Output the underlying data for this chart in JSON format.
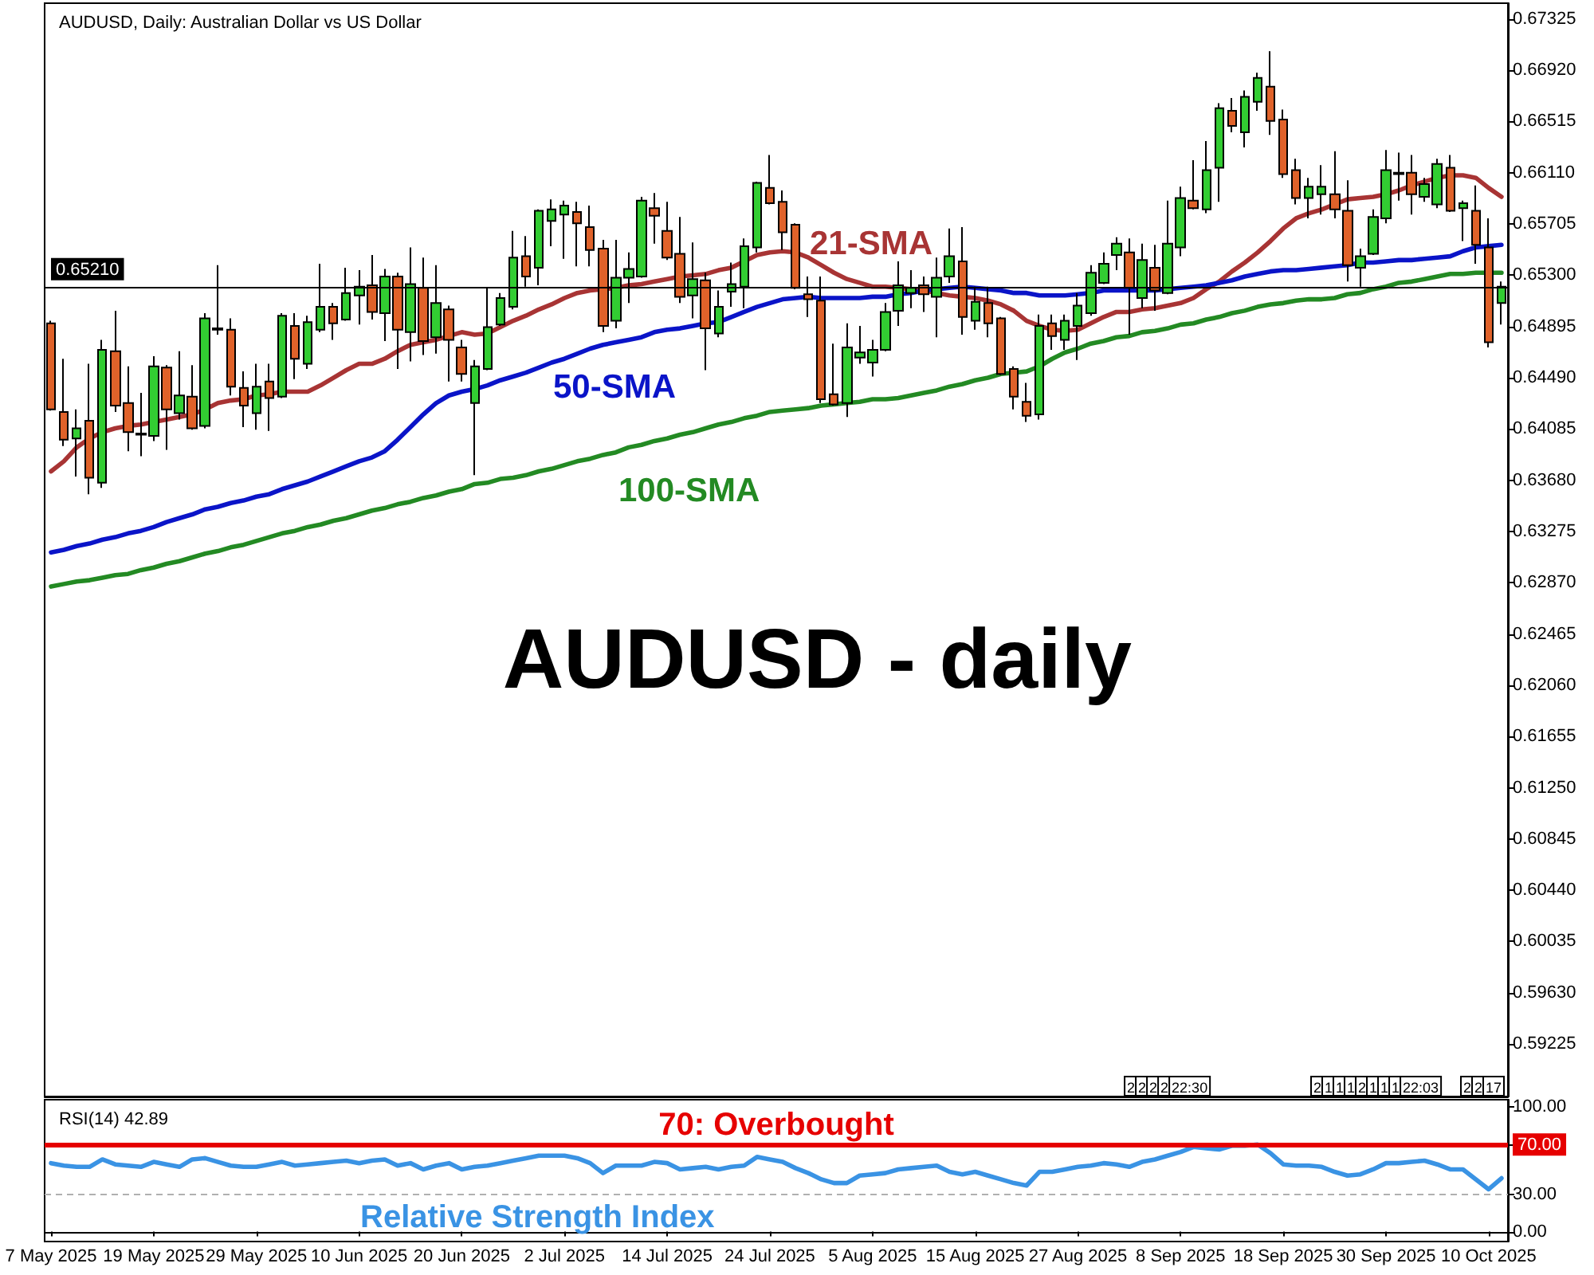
{
  "chart_data": [
    {
      "type": "candlestick",
      "title": "AUDUSD, Daily: Australian Dollar vs US Dollar",
      "categories": [
        null,
        null,
        null,
        null,
        null,
        null,
        null,
        null,
        null,
        null,
        null,
        null,
        null,
        null,
        null,
        null,
        null,
        null,
        null,
        null,
        null,
        null,
        null,
        null,
        null,
        null,
        null,
        null,
        null,
        null,
        null,
        null,
        null,
        null,
        null,
        null,
        null,
        null,
        null,
        null,
        null,
        null,
        null,
        null,
        null,
        null,
        null,
        null,
        null,
        null,
        null,
        null,
        null,
        null,
        null,
        null,
        null,
        null,
        null,
        null,
        null,
        null,
        null,
        null,
        null,
        null,
        null,
        null,
        null,
        null,
        null,
        null,
        null,
        null,
        null,
        null,
        null,
        null,
        null,
        null,
        null,
        null,
        null,
        null,
        null,
        null,
        null,
        null,
        null,
        null,
        null,
        null,
        null,
        null,
        null,
        null,
        null,
        null,
        null,
        null,
        null,
        null,
        null,
        null,
        null,
        null,
        null,
        null,
        null,
        null,
        null,
        null,
        null,
        null
      ],
      "ohlc": [
        [
          0.6492,
          0.6494,
          0.6423,
          0.6424
        ],
        [
          0.6422,
          0.6464,
          0.6395,
          0.64
        ],
        [
          0.6401,
          0.6424,
          0.6371,
          0.6409
        ],
        [
          0.6415,
          0.646,
          0.6357,
          0.637
        ],
        [
          0.6366,
          0.6479,
          0.6362,
          0.6471
        ],
        [
          0.647,
          0.6502,
          0.6422,
          0.6427
        ],
        [
          0.6429,
          0.6458,
          0.6391,
          0.6406
        ],
        [
          0.6405,
          0.6437,
          0.6387,
          0.6404
        ],
        [
          0.6403,
          0.6466,
          0.6399,
          0.6458
        ],
        [
          0.6457,
          0.6459,
          0.6392,
          0.6424
        ],
        [
          0.6421,
          0.647,
          0.6416,
          0.6435
        ],
        [
          0.6434,
          0.6459,
          0.6408,
          0.6409
        ],
        [
          0.6411,
          0.65,
          0.6409,
          0.6496
        ],
        [
          0.6488,
          0.6538,
          0.6483,
          0.6487
        ],
        [
          0.6487,
          0.6496,
          0.6435,
          0.6442
        ],
        [
          0.6441,
          0.6454,
          0.641,
          0.6427
        ],
        [
          0.6421,
          0.646,
          0.6408,
          0.6442
        ],
        [
          0.6446,
          0.646,
          0.6407,
          0.6433
        ],
        [
          0.6434,
          0.65,
          0.6433,
          0.6498
        ],
        [
          0.649,
          0.65,
          0.6448,
          0.6464
        ],
        [
          0.646,
          0.6498,
          0.6456,
          0.6493
        ],
        [
          0.6487,
          0.6539,
          0.6485,
          0.6505
        ],
        [
          0.6505,
          0.6508,
          0.6479,
          0.6492
        ],
        [
          0.6495,
          0.6536,
          0.6494,
          0.6516
        ],
        [
          0.6514,
          0.6534,
          0.6491,
          0.6521
        ],
        [
          0.6522,
          0.6546,
          0.6495,
          0.6501
        ],
        [
          0.65,
          0.6535,
          0.6478,
          0.6529
        ],
        [
          0.6529,
          0.6532,
          0.6456,
          0.6487
        ],
        [
          0.6485,
          0.6552,
          0.6462,
          0.6523
        ],
        [
          0.652,
          0.6544,
          0.6467,
          0.6478
        ],
        [
          0.6481,
          0.6538,
          0.6468,
          0.6508
        ],
        [
          0.6503,
          0.6506,
          0.6446,
          0.6479
        ],
        [
          0.6473,
          0.6479,
          0.6446,
          0.6452
        ],
        [
          0.6429,
          0.6463,
          0.6372,
          0.6458
        ],
        [
          0.6456,
          0.652,
          0.6455,
          0.6489
        ],
        [
          0.6491,
          0.6516,
          0.649,
          0.6512
        ],
        [
          0.6505,
          0.6565,
          0.6503,
          0.6544
        ],
        [
          0.6545,
          0.6561,
          0.6521,
          0.6529
        ],
        [
          0.6536,
          0.6582,
          0.6522,
          0.6581
        ],
        [
          0.6573,
          0.659,
          0.6553,
          0.6582
        ],
        [
          0.6578,
          0.6589,
          0.6543,
          0.6585
        ],
        [
          0.658,
          0.6588,
          0.6537,
          0.6571
        ],
        [
          0.6568,
          0.6585,
          0.6537,
          0.655
        ],
        [
          0.6551,
          0.6558,
          0.6485,
          0.649
        ],
        [
          0.6494,
          0.6558,
          0.6488,
          0.6528
        ],
        [
          0.6528,
          0.6548,
          0.6508,
          0.6535
        ],
        [
          0.6529,
          0.6592,
          0.6528,
          0.6589
        ],
        [
          0.6583,
          0.6595,
          0.6555,
          0.6577
        ],
        [
          0.6565,
          0.6588,
          0.6542,
          0.6544
        ],
        [
          0.6547,
          0.6576,
          0.6508,
          0.6513
        ],
        [
          0.6514,
          0.6556,
          0.6496,
          0.6527
        ],
        [
          0.6526,
          0.6532,
          0.6455,
          0.6488
        ],
        [
          0.6484,
          0.6518,
          0.6481,
          0.6505
        ],
        [
          0.6517,
          0.654,
          0.6505,
          0.6523
        ],
        [
          0.6521,
          0.6559,
          0.6504,
          0.6553
        ],
        [
          0.6552,
          0.6604,
          0.6548,
          0.6603
        ],
        [
          0.6599,
          0.6625,
          0.6586,
          0.6587
        ],
        [
          0.6588,
          0.6597,
          0.655,
          0.6564
        ],
        [
          0.657,
          0.6571,
          0.6519,
          0.652
        ],
        [
          0.6515,
          0.6529,
          0.6497,
          0.6511
        ],
        [
          0.651,
          0.6529,
          0.6429,
          0.6432
        ],
        [
          0.6436,
          0.6476,
          0.6427,
          0.6428
        ],
        [
          0.6429,
          0.6492,
          0.6418,
          0.6473
        ],
        [
          0.6465,
          0.649,
          0.646,
          0.6469
        ],
        [
          0.6461,
          0.6479,
          0.645,
          0.6471
        ],
        [
          0.6471,
          0.6508,
          0.647,
          0.6501
        ],
        [
          0.6502,
          0.6541,
          0.649,
          0.6522
        ],
        [
          0.6516,
          0.6534,
          0.6504,
          0.652
        ],
        [
          0.6522,
          0.6529,
          0.6501,
          0.6515
        ],
        [
          0.6513,
          0.6544,
          0.6481,
          0.6528
        ],
        [
          0.6529,
          0.6567,
          0.6524,
          0.6545
        ],
        [
          0.6541,
          0.6568,
          0.6483,
          0.6497
        ],
        [
          0.6494,
          0.6521,
          0.6487,
          0.6509
        ],
        [
          0.6508,
          0.6521,
          0.6481,
          0.6492
        ],
        [
          0.6496,
          0.6497,
          0.6451,
          0.6452
        ],
        [
          0.6456,
          0.6458,
          0.6424,
          0.6434
        ],
        [
          0.643,
          0.6445,
          0.6414,
          0.6419
        ],
        [
          0.642,
          0.6499,
          0.6416,
          0.649
        ],
        [
          0.6492,
          0.6499,
          0.6471,
          0.6482
        ],
        [
          0.6479,
          0.6499,
          0.6471,
          0.6494
        ],
        [
          0.649,
          0.6516,
          0.6463,
          0.6506
        ],
        [
          0.65,
          0.6538,
          0.6498,
          0.6532
        ],
        [
          0.6524,
          0.6548,
          0.6523,
          0.6539
        ],
        [
          0.6546,
          0.656,
          0.6534,
          0.6555
        ],
        [
          0.6548,
          0.6559,
          0.6483,
          0.652
        ],
        [
          0.6512,
          0.6555,
          0.6504,
          0.6542
        ],
        [
          0.6536,
          0.6554,
          0.6502,
          0.6518
        ],
        [
          0.6516,
          0.6589,
          0.6515,
          0.6555
        ],
        [
          0.6552,
          0.66,
          0.6545,
          0.6591
        ],
        [
          0.6589,
          0.6621,
          0.6582,
          0.6583
        ],
        [
          0.6582,
          0.6636,
          0.6579,
          0.6613
        ],
        [
          0.6615,
          0.6666,
          0.6588,
          0.6662
        ],
        [
          0.666,
          0.667,
          0.6643,
          0.6648
        ],
        [
          0.6643,
          0.6676,
          0.6631,
          0.6671
        ],
        [
          0.6667,
          0.669,
          0.666,
          0.6686
        ],
        [
          0.6679,
          0.6707,
          0.6641,
          0.6652
        ],
        [
          0.6653,
          0.6661,
          0.6607,
          0.661
        ],
        [
          0.6613,
          0.6622,
          0.6586,
          0.6591
        ],
        [
          0.6591,
          0.6607,
          0.6575,
          0.66
        ],
        [
          0.6594,
          0.6617,
          0.6578,
          0.66
        ],
        [
          0.6594,
          0.6628,
          0.6575,
          0.6582
        ],
        [
          0.6581,
          0.6605,
          0.6525,
          0.6538
        ],
        [
          0.6536,
          0.6551,
          0.6521,
          0.6545
        ],
        [
          0.6547,
          0.6582,
          0.6546,
          0.6576
        ],
        [
          0.6575,
          0.6629,
          0.6571,
          0.6613
        ],
        [
          0.6611,
          0.6627,
          0.6589,
          0.661
        ],
        [
          0.6611,
          0.6625,
          0.6578,
          0.6594
        ],
        [
          0.6592,
          0.6607,
          0.6588,
          0.6602
        ],
        [
          0.6586,
          0.6622,
          0.6583,
          0.6618
        ],
        [
          0.6615,
          0.6625,
          0.658,
          0.6581
        ],
        [
          0.6583,
          0.6589,
          0.6557,
          0.6587
        ],
        [
          0.6581,
          0.6601,
          0.6539,
          0.6554
        ],
        [
          0.6552,
          0.6575,
          0.6473,
          0.6477
        ],
        [
          0.6508,
          0.6525,
          0.6491,
          0.6521
        ]
      ],
      "colors": [
        "#e0622a",
        "#e0622a",
        "#32cd32",
        "#e0622a",
        "#32cd32",
        "#e0622a",
        "#e0622a",
        "#e0622a",
        "#32cd32",
        "#e0622a",
        "#32cd32",
        "#e0622a",
        "#32cd32",
        "#e0622a",
        "#e0622a",
        "#e0622a",
        "#32cd32",
        "#e0622a",
        "#32cd32",
        "#e0622a",
        "#32cd32",
        "#32cd32",
        "#e0622a",
        "#32cd32",
        "#32cd32",
        "#e0622a",
        "#32cd32",
        "#e0622a",
        "#32cd32",
        "#e0622a",
        "#32cd32",
        "#e0622a",
        "#e0622a",
        "#32cd32",
        "#32cd32",
        "#32cd32",
        "#32cd32",
        "#e0622a",
        "#32cd32",
        "#32cd32",
        "#32cd32",
        "#e0622a",
        "#e0622a",
        "#e0622a",
        "#32cd32",
        "#32cd32",
        "#32cd32",
        "#e0622a",
        "#e0622a",
        "#e0622a",
        "#32cd32",
        "#e0622a",
        "#32cd32",
        "#32cd32",
        "#32cd32",
        "#32cd32",
        "#e0622a",
        "#e0622a",
        "#e0622a",
        "#e0622a",
        "#e0622a",
        "#e0622a",
        "#32cd32",
        "#32cd32",
        "#32cd32",
        "#32cd32",
        "#32cd32",
        "#32cd32",
        "#e0622a",
        "#32cd32",
        "#32cd32",
        "#e0622a",
        "#32cd32",
        "#e0622a",
        "#e0622a",
        "#e0622a",
        "#e0622a",
        "#32cd32",
        "#e0622a",
        "#32cd32",
        "#32cd32",
        "#32cd32",
        "#32cd32",
        "#32cd32",
        "#e0622a",
        "#32cd32",
        "#e0622a",
        "#32cd32",
        "#32cd32",
        "#e0622a",
        "#32cd32",
        "#32cd32",
        "#e0622a",
        "#32cd32",
        "#32cd32",
        "#e0622a",
        "#e0622a",
        "#e0622a",
        "#32cd32",
        "#32cd32",
        "#e0622a",
        "#e0622a",
        "#32cd32",
        "#32cd32",
        "#32cd32",
        "#e0622a",
        "#e0622a",
        "#32cd32",
        "#32cd32",
        "#e0622a",
        "#32cd32",
        "#e0622a",
        "#e0622a",
        "#32cd32"
      ],
      "series": [
        {
          "type": "line",
          "name": "21-SMA",
          "color": "#a83434",
          "values": [
            0.6375,
            0.6383,
            0.6394,
            0.6401,
            0.6406,
            0.6409,
            0.6411,
            0.6412,
            0.6414,
            0.6416,
            0.6418,
            0.642,
            0.6424,
            0.6429,
            0.6431,
            0.6432,
            0.6435,
            0.6436,
            0.6438,
            0.6438,
            0.6438,
            0.6443,
            0.6449,
            0.6455,
            0.646,
            0.646,
            0.6464,
            0.647,
            0.6475,
            0.6477,
            0.6479,
            0.6482,
            0.6485,
            0.6483,
            0.6484,
            0.6489,
            0.6494,
            0.6498,
            0.6503,
            0.6507,
            0.6512,
            0.6516,
            0.6518,
            0.6519,
            0.652,
            0.6522,
            0.6523,
            0.6525,
            0.6527,
            0.6529,
            0.653,
            0.6531,
            0.6534,
            0.6536,
            0.6541,
            0.6546,
            0.6548,
            0.6549,
            0.6548,
            0.6544,
            0.6538,
            0.6532,
            0.6527,
            0.6524,
            0.6521,
            0.6521,
            0.652,
            0.6519,
            0.6518,
            0.6516,
            0.6514,
            0.6513,
            0.6512,
            0.651,
            0.6507,
            0.6502,
            0.6494,
            0.649,
            0.6487,
            0.6486,
            0.6487,
            0.6492,
            0.6497,
            0.6501,
            0.6501,
            0.6503,
            0.6504,
            0.6506,
            0.6508,
            0.6512,
            0.6519,
            0.6525,
            0.6533,
            0.654,
            0.6548,
            0.6557,
            0.6567,
            0.6575,
            0.6579,
            0.6582,
            0.6586,
            0.659,
            0.6591,
            0.6592,
            0.6594,
            0.6597,
            0.6601,
            0.6604,
            0.6607,
            0.6609,
            0.6609,
            0.6607,
            0.6599,
            0.6592
          ]
        },
        {
          "type": "line",
          "name": "50-SMA",
          "color": "#0a14c8",
          "values": [
            0.6311,
            0.6313,
            0.6316,
            0.6318,
            0.6321,
            0.6323,
            0.6326,
            0.6328,
            0.6331,
            0.6335,
            0.6338,
            0.6341,
            0.6345,
            0.6347,
            0.635,
            0.6352,
            0.6355,
            0.6357,
            0.6361,
            0.6364,
            0.6367,
            0.6371,
            0.6375,
            0.6379,
            0.6383,
            0.6386,
            0.6391,
            0.64,
            0.641,
            0.642,
            0.6429,
            0.6435,
            0.6438,
            0.644,
            0.6443,
            0.6447,
            0.645,
            0.6453,
            0.6457,
            0.6461,
            0.6464,
            0.6468,
            0.6472,
            0.6475,
            0.6477,
            0.6479,
            0.6481,
            0.6485,
            0.6487,
            0.6488,
            0.649,
            0.6492,
            0.6493,
            0.6497,
            0.6501,
            0.6505,
            0.6508,
            0.6511,
            0.6512,
            0.6513,
            0.6512,
            0.6512,
            0.6512,
            0.6512,
            0.6513,
            0.6513,
            0.6515,
            0.6516,
            0.6518,
            0.6519,
            0.652,
            0.6521,
            0.652,
            0.6519,
            0.6518,
            0.6516,
            0.6516,
            0.6514,
            0.6514,
            0.6514,
            0.6515,
            0.6516,
            0.6518,
            0.6518,
            0.6518,
            0.6518,
            0.6518,
            0.6519,
            0.652,
            0.6521,
            0.6522,
            0.6524,
            0.6526,
            0.6529,
            0.6531,
            0.6533,
            0.6534,
            0.6534,
            0.6535,
            0.6536,
            0.6537,
            0.6538,
            0.654,
            0.654,
            0.6541,
            0.6542,
            0.6542,
            0.6543,
            0.6544,
            0.6545,
            0.6549,
            0.6552,
            0.6553,
            0.6554
          ]
        },
        {
          "type": "line",
          "name": "100-SMA",
          "color": "#238a23",
          "values": [
            0.6284,
            0.6286,
            0.6288,
            0.6289,
            0.6291,
            0.6293,
            0.6294,
            0.6297,
            0.6299,
            0.6302,
            0.6304,
            0.6307,
            0.631,
            0.6312,
            0.6315,
            0.6317,
            0.632,
            0.6323,
            0.6326,
            0.6328,
            0.6331,
            0.6333,
            0.6336,
            0.6338,
            0.6341,
            0.6344,
            0.6346,
            0.6349,
            0.6351,
            0.6354,
            0.6356,
            0.6359,
            0.6361,
            0.6365,
            0.6366,
            0.6369,
            0.637,
            0.6372,
            0.6375,
            0.6377,
            0.638,
            0.6383,
            0.6385,
            0.6388,
            0.639,
            0.6394,
            0.6396,
            0.6399,
            0.6401,
            0.6404,
            0.6406,
            0.6409,
            0.6412,
            0.6414,
            0.6417,
            0.6419,
            0.6422,
            0.6423,
            0.6424,
            0.6425,
            0.6427,
            0.6428,
            0.6429,
            0.643,
            0.6432,
            0.6432,
            0.6433,
            0.6435,
            0.6437,
            0.6439,
            0.6442,
            0.6444,
            0.6447,
            0.6449,
            0.6452,
            0.6453,
            0.6454,
            0.6458,
            0.6464,
            0.6469,
            0.6472,
            0.6476,
            0.6478,
            0.6481,
            0.6482,
            0.6485,
            0.6486,
            0.6488,
            0.6491,
            0.6492,
            0.6495,
            0.6497,
            0.65,
            0.6502,
            0.6505,
            0.6507,
            0.6508,
            0.651,
            0.6511,
            0.6511,
            0.6512,
            0.6515,
            0.6516,
            0.6519,
            0.6521,
            0.6524,
            0.6525,
            0.6527,
            0.6529,
            0.6531,
            0.6531,
            0.6532,
            0.6532,
            0.6532
          ]
        }
      ],
      "ylim": [
        0.5881,
        0.6745
      ],
      "yticks": [
        0.67325,
        {
          "value": 0.6692,
          "label": "0.66920"
        },
        0.66515,
        {
          "value": 0.6611,
          "label": "0.66110"
        },
        0.65705,
        {
          "value": 0.653,
          "label": "0.65300"
        },
        0.64895,
        {
          "value": 0.6449,
          "label": "0.64490"
        },
        0.64085,
        {
          "value": 0.6368,
          "label": "0.63680"
        },
        0.63275,
        {
          "value": 0.6287,
          "label": "0.62870"
        },
        0.62465,
        {
          "value": 0.6206,
          "label": "0.62060"
        },
        0.61655,
        {
          "value": 0.6125,
          "label": "0.61250"
        },
        0.60845,
        {
          "value": 0.6044,
          "label": "0.60440"
        },
        0.60035,
        {
          "value": 0.5963,
          "label": "0.59630"
        },
        0.59225
      ],
      "ref_lines": [
        {
          "axis": "y",
          "value": 0.6521,
          "label": "0.65210",
          "color": "#000000"
        }
      ],
      "annotations": [
        "AUDUSD - daily",
        "2 2 2 2 22:30",
        "2 1 1 1 2 1 1 1 22:03",
        "2 2 17"
      ],
      "tick_labels": "y"
    },
    {
      "type": "line",
      "title": "RSI(14) 42.89",
      "categories": [
        "7 May 2025",
        null,
        null,
        null,
        null,
        null,
        null,
        null,
        "19 May 2025",
        null,
        null,
        null,
        null,
        null,
        null,
        null,
        "29 May 2025",
        null,
        null,
        null,
        null,
        null,
        null,
        null,
        "10 Jun 2025",
        null,
        null,
        null,
        null,
        null,
        null,
        null,
        "20 Jun 2025",
        null,
        null,
        null,
        null,
        null,
        null,
        null,
        "2 Jul 2025",
        null,
        null,
        null,
        null,
        null,
        null,
        null,
        "14 Jul 2025",
        null,
        null,
        null,
        null,
        null,
        null,
        null,
        "24 Jul 2025",
        null,
        null,
        null,
        null,
        null,
        null,
        null,
        "5 Aug 2025",
        null,
        null,
        null,
        null,
        null,
        null,
        null,
        "15 Aug 2025",
        null,
        null,
        null,
        null,
        null,
        null,
        null,
        "27 Aug 2025",
        null,
        null,
        null,
        null,
        null,
        null,
        null,
        "8 Sep 2025",
        null,
        null,
        null,
        null,
        null,
        null,
        null,
        "18 Sep 2025",
        null,
        null,
        null,
        null,
        null,
        null,
        null,
        "30 Sep 2025",
        null,
        null,
        null,
        null,
        null,
        null,
        null,
        "10 Oct 2025",
        null
      ],
      "series": [
        {
          "name": "Relative Strength Index",
          "color": "#3a93e4",
          "values": [
            55,
            53,
            52,
            52,
            58,
            54,
            53,
            52,
            56,
            54,
            52,
            58,
            59,
            56,
            53,
            52,
            52,
            54,
            56,
            53,
            54,
            55,
            56,
            57,
            55,
            57,
            58,
            53,
            55,
            50,
            53,
            55,
            50,
            52,
            53,
            55,
            57,
            59,
            61,
            61,
            61,
            59,
            55,
            47,
            53,
            53,
            53,
            56,
            55,
            50,
            51,
            52,
            50,
            52,
            53,
            60,
            58,
            56,
            51,
            47,
            42,
            39,
            39,
            45,
            46,
            47,
            50,
            51,
            52,
            53,
            48,
            46,
            48,
            45,
            42,
            39,
            37,
            48,
            48,
            50,
            52,
            53,
            55,
            54,
            52,
            56,
            58,
            61,
            64,
            68,
            67,
            66,
            69,
            69,
            70,
            63,
            54,
            53,
            53,
            52,
            48,
            45,
            46,
            50,
            55,
            55,
            56,
            57,
            54,
            50,
            50,
            42,
            34,
            42.89
          ]
        }
      ],
      "ylim": [
        -8,
        106
      ],
      "yticks": [
        {
          "value": 100,
          "label": "100.00"
        },
        {
          "value": 70,
          "label": "70.00"
        },
        {
          "value": 30,
          "label": "30.00"
        },
        {
          "value": 0,
          "label": "0.00"
        }
      ],
      "ref_lines": [
        {
          "axis": "y",
          "value": 70,
          "label": "70: Overbought",
          "color": "#e60000"
        },
        {
          "axis": "y",
          "value": 30,
          "color": "#b0b0b0",
          "line_style": "dashed"
        }
      ]
    }
  ]
}
